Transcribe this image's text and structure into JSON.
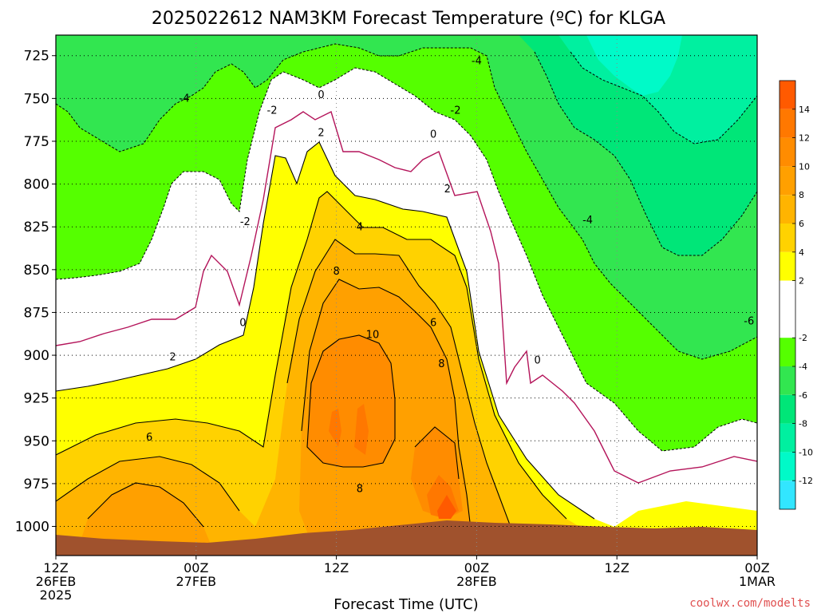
{
  "chart_data": {
    "type": "heatmap",
    "title": "2025022612 NAM3KM Forecast Temperature (ºC) for KLGA",
    "xlabel": "Forecast Time (UTC)",
    "ylabel": "",
    "x_ticks": [
      {
        "hour": 0,
        "lines": [
          "12Z",
          "26FEB",
          "2025"
        ]
      },
      {
        "hour": 12,
        "lines": [
          "00Z",
          "27FEB"
        ]
      },
      {
        "hour": 24,
        "lines": [
          "12Z"
        ]
      },
      {
        "hour": 36,
        "lines": [
          "00Z",
          "28FEB"
        ]
      },
      {
        "hour": 48,
        "lines": [
          "12Z"
        ]
      },
      {
        "hour": 60,
        "lines": [
          "00Z",
          "1MAR"
        ]
      }
    ],
    "xlim": [
      0,
      60
    ],
    "y_ticks": [
      725,
      750,
      775,
      800,
      825,
      850,
      875,
      900,
      925,
      950,
      975,
      1000
    ],
    "ylim": [
      713,
      1017
    ],
    "y_scale": "linear, inverted (pressure hPa)",
    "grid": true,
    "colorbar": {
      "labels": [
        "14",
        "12",
        "10",
        "8",
        "6",
        "4",
        "2",
        "-2",
        "-4",
        "-6",
        "-8",
        "-10",
        "-12"
      ],
      "bins": [
        {
          "lo": 14,
          "hi": 16,
          "color": "#ff5a00"
        },
        {
          "lo": 12,
          "hi": 14,
          "color": "#ff7800"
        },
        {
          "lo": 10,
          "hi": 12,
          "color": "#ff8c00"
        },
        {
          "lo": 8,
          "hi": 10,
          "color": "#ffa000"
        },
        {
          "lo": 6,
          "hi": 8,
          "color": "#ffb400"
        },
        {
          "lo": 4,
          "hi": 6,
          "color": "#ffd200"
        },
        {
          "lo": 2,
          "hi": 4,
          "color": "#ffff00"
        },
        {
          "lo": -2,
          "hi": 2,
          "color": "#ffffff"
        },
        {
          "lo": -4,
          "hi": -2,
          "color": "#55ff00"
        },
        {
          "lo": -6,
          "hi": -4,
          "color": "#32e650"
        },
        {
          "lo": -8,
          "hi": -6,
          "color": "#00e678"
        },
        {
          "lo": -10,
          "hi": -8,
          "color": "#00f0a0"
        },
        {
          "lo": -12,
          "hi": -10,
          "color": "#00fac8"
        },
        {
          "lo": -14,
          "hi": -12,
          "color": "#32e6ff"
        }
      ]
    },
    "terrain_color": "#a0522d",
    "zero_line_color": "#b4145a",
    "contour_labels": [
      {
        "hour": 11.0,
        "p": 751,
        "text": "-4"
      },
      {
        "hour": 36.0,
        "p": 729,
        "text": "-4"
      },
      {
        "hour": 45.5,
        "p": 822,
        "text": "-4"
      },
      {
        "hour": 18.5,
        "p": 758,
        "text": "-2"
      },
      {
        "hour": 34.2,
        "p": 758,
        "text": "-2"
      },
      {
        "hour": 16.2,
        "p": 823,
        "text": "-2"
      },
      {
        "hour": 22.7,
        "p": 749,
        "text": "0"
      },
      {
        "hour": 32.3,
        "p": 772,
        "text": "0"
      },
      {
        "hour": 16.0,
        "p": 882,
        "text": "0"
      },
      {
        "hour": 41.2,
        "p": 904,
        "text": "0"
      },
      {
        "hour": 22.7,
        "p": 771,
        "text": "2"
      },
      {
        "hour": 33.5,
        "p": 804,
        "text": "2"
      },
      {
        "hour": 10.0,
        "p": 902,
        "text": "2"
      },
      {
        "hour": 26.0,
        "p": 826,
        "text": "4"
      },
      {
        "hour": 24.0,
        "p": 852,
        "text": "8"
      },
      {
        "hour": 32.3,
        "p": 882,
        "text": "6"
      },
      {
        "hour": 27.1,
        "p": 889,
        "text": "10"
      },
      {
        "hour": 33.0,
        "p": 906,
        "text": "8"
      },
      {
        "hour": 8.0,
        "p": 949,
        "text": "6"
      },
      {
        "hour": 26.0,
        "p": 979,
        "text": "8"
      },
      {
        "hour": 59.3,
        "p": 881,
        "text": "-6"
      }
    ],
    "annotation": "coolwx.com/modelts"
  }
}
